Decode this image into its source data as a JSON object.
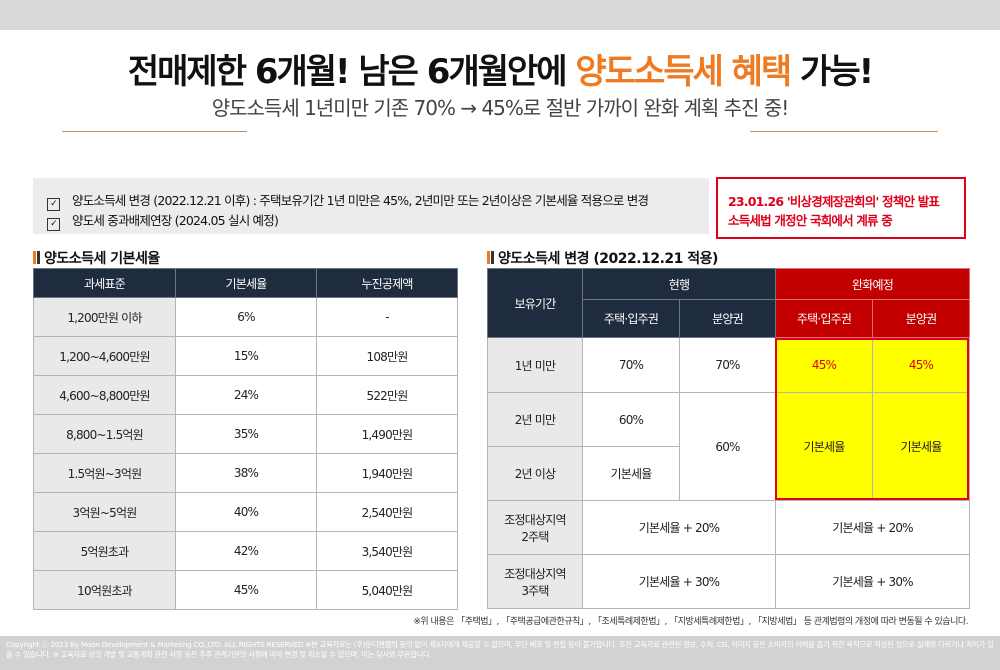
{
  "header": {
    "title_a": "전매제한 6개월! 남은 6개월안에 ",
    "title_hl": "양도소득세 혜택",
    "title_b": " 가능!",
    "subtitle": "양도소득세 1년미만 기존 70% → 45%로 절반 가까이 완화 계획 추진 중!"
  },
  "notes": [
    "양도소득세 변경 (2022.12.21 이후) : 주택보유기간 1년 미만은 45%, 2년미만 또는 2년이상은 기본세율 적용으로 변경",
    "양도세 중과배제연장 (2024.05 실시 예정)"
  ],
  "alert": {
    "line1": "23.01.26 '비상경제장관회의' 정책안 발표",
    "line2": "소득세법 개정안 국회에서 계류 중"
  },
  "left": {
    "section_title": "양도소득세 기본세율",
    "headers": [
      "과세표준",
      "기본세율",
      "누진공제액"
    ],
    "rows": [
      [
        "1,200만원 이하",
        "6%",
        "-"
      ],
      [
        "1,200~4,600만원",
        "15%",
        "108만원"
      ],
      [
        "4,600~8,800만원",
        "24%",
        "522만원"
      ],
      [
        "8,800~1.5억원",
        "35%",
        "1,490만원"
      ],
      [
        "1.5억원~3억원",
        "38%",
        "1,940만원"
      ],
      [
        "3억원~5억원",
        "40%",
        "2,540만원"
      ],
      [
        "5억원초과",
        "42%",
        "3,540만원"
      ],
      [
        "10억원초과",
        "45%",
        "5,040만원"
      ]
    ]
  },
  "right": {
    "section_title": "양도소득세 변경 (2022.12.21 적용)",
    "h_period": "보유기간",
    "h_current": "현행",
    "h_planned": "완화예정",
    "h_sub1": "주택·입주권",
    "h_sub2": "분양권",
    "h_sub3": "주택·입주권",
    "h_sub4": "분양권",
    "r1": {
      "label": "1년 미만",
      "c1": "70%",
      "c2": "70%",
      "c3": "45%",
      "c4": "45%"
    },
    "r2": {
      "label": "2년 미만",
      "c1": "60%",
      "c2": "60%",
      "c3": "기본세율",
      "c4": "기본세율"
    },
    "r3": {
      "label": "2년 이상",
      "c1": "기본세율"
    },
    "r4": {
      "label1": "조정대상지역",
      "label2": "2주택",
      "current": "기본세율 + 20%",
      "planned": "기본세율 + 20%"
    },
    "r5": {
      "label1": "조정대상지역",
      "label2": "3주택",
      "current": "기본세율 + 30%",
      "planned": "기본세율 + 30%"
    }
  },
  "footnote": "※위 내용은 「주택법」, 「주택공급에관한규칙」, 「조세특례제한법」, 「지방세특례제한법」, 「지방세법」 등 관계법령의 개정에 따라 변동될 수 있습니다.",
  "copyright": "Copyright ⓒ 2023 By Moon Development & Marketing CO.,LTD. ALL RIGHTS RESERVED  ※본 교육자료는 (주)문디앤엠의 동의 없이 제3자에게 제공할 수 없으며, 무단 배포 및 편집 등이 불가합니다. 또한 교육자료 관련된 정보, 수치, CG, 이미지 등은 소비자의 이해를 돕기 위한 목적으로 작성된 것으로 실제와 다르거나 차이가 있을 수 있습니다. ※ 교육자료 상의 개발 및 교통계획 관련 사항 등은 추후 관계기관의 사정에 따라 변경 및 취소될 수 있으며, 이는 당사와 무관합니다.",
  "colors": {
    "accent": "#ee7a22",
    "alert": "#e1001a",
    "header_dark": "#1f2b3e",
    "header_red": "#c20000",
    "highlight": "#ffff00"
  }
}
